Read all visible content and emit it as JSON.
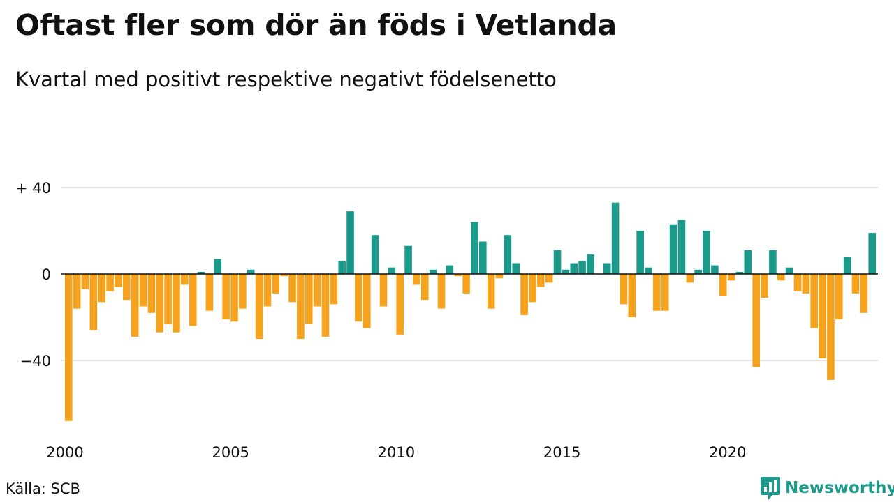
{
  "title": "Oftast fler som dör än föds i Vetlanda",
  "subtitle": "Kvartal med positivt respektive negativt födelsenetto",
  "source": "Källa: SCB",
  "brand": {
    "name": "Newsworthy",
    "icon": "bar-chart-speech-icon"
  },
  "colors": {
    "positive": "#1b9a8b",
    "negative": "#f5a31f",
    "grid": "#e2e2e2",
    "zero": "#111111",
    "brand": "#1e9a8c"
  },
  "chart_data": {
    "type": "bar",
    "x_start": "2000Q1",
    "frequency": "quarterly",
    "ylim": [
      -70,
      40
    ],
    "yticks": [
      {
        "value": 40,
        "label": "+ 40"
      },
      {
        "value": 0,
        "label": "0"
      },
      {
        "value": -40,
        "label": "−40"
      }
    ],
    "xticks": [
      "2000",
      "2005",
      "2010",
      "2015",
      "2020"
    ],
    "grid": true,
    "values": [
      -68,
      -16,
      -7,
      -26,
      -13,
      -8,
      -6,
      -12,
      -29,
      -15,
      -18,
      -27,
      -23,
      -27,
      -5,
      -24,
      1,
      -17,
      7,
      -21,
      -22,
      -16,
      2,
      -30,
      -15,
      -9,
      -1,
      -13,
      -30,
      -23,
      -15,
      -29,
      -14,
      6,
      29,
      -22,
      -25,
      18,
      -15,
      3,
      -28,
      13,
      -5,
      -12,
      2,
      -16,
      4,
      -1,
      -9,
      24,
      15,
      -16,
      -2,
      18,
      5,
      -19,
      -13,
      -6,
      -4,
      11,
      2,
      5,
      6,
      9,
      0,
      5,
      33,
      -14,
      -20,
      20,
      3,
      -17,
      -17,
      23,
      25,
      -4,
      2,
      20,
      4,
      -10,
      -3,
      1,
      11,
      -43,
      -11,
      11,
      -3,
      3,
      -8,
      -9,
      -25,
      -39,
      -49,
      -21,
      8,
      -9,
      -18,
      19
    ]
  }
}
